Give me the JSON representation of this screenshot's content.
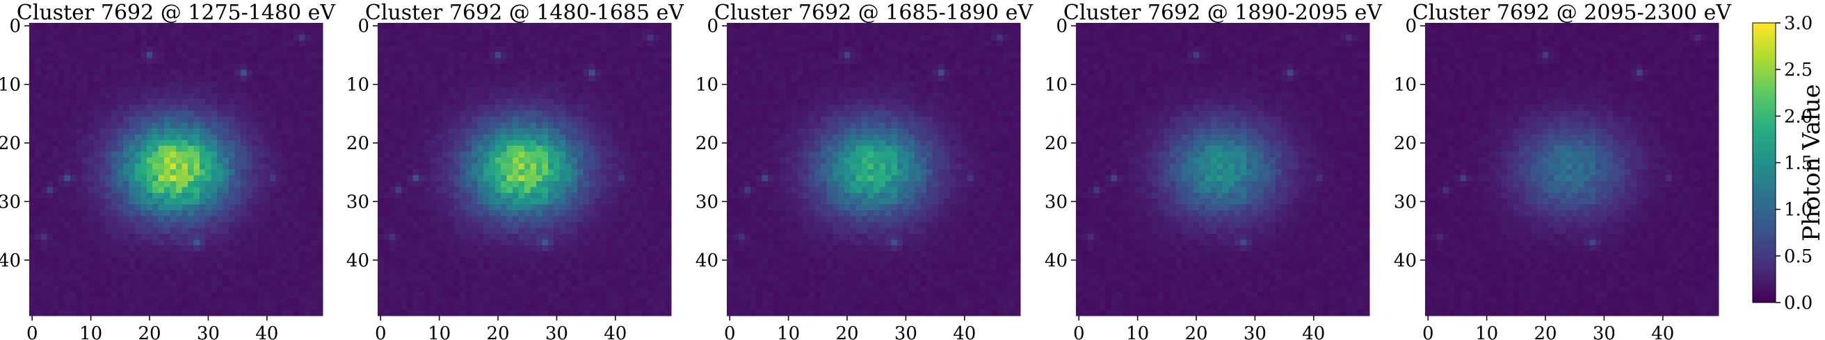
{
  "chart_data": {
    "type": "heatmap",
    "grid_size": 50,
    "cluster": "7692",
    "title_format": "Cluster {cluster} @ {band} eV",
    "xticks": [
      0,
      10,
      20,
      30,
      40
    ],
    "yticks": [
      0,
      10,
      20,
      30,
      40
    ],
    "colormap": "viridis",
    "colorbar": {
      "label": "Photon Value",
      "range": [
        0.0,
        3.0
      ],
      "ticks": [
        "0.0",
        "0.5",
        "1.0",
        "1.5",
        "2.0",
        "2.5",
        "3.0"
      ]
    },
    "source_blob": {
      "center_x": 24.5,
      "center_y": 24.5,
      "sigma_x": 6.5,
      "sigma_y": 5.5
    },
    "point_sources": [
      {
        "x": 20,
        "y": 5,
        "strength": 0.55
      },
      {
        "x": 36,
        "y": 8,
        "strength": 0.6
      },
      {
        "x": 6,
        "y": 26,
        "strength": 0.5
      },
      {
        "x": 3,
        "y": 28,
        "strength": 0.35
      },
      {
        "x": 28,
        "y": 37,
        "strength": 0.55
      },
      {
        "x": 2,
        "y": 36,
        "strength": 0.3
      },
      {
        "x": 46,
        "y": 2,
        "strength": 0.3
      },
      {
        "x": 41,
        "y": 26,
        "strength": 0.3
      }
    ],
    "panels": [
      {
        "band": "1275-1480",
        "title": "Cluster 7692 @ 1275-1480 eV",
        "peak": 2.35,
        "background": 0.12
      },
      {
        "band": "1480-1685",
        "title": "Cluster 7692 @ 1480-1685 eV",
        "peak": 2.2,
        "background": 0.12
      },
      {
        "band": "1685-1890",
        "title": "Cluster 7692 @ 1685-1890 eV",
        "peak": 1.7,
        "background": 0.11
      },
      {
        "band": "1890-2095",
        "title": "Cluster 7692 @ 1890-2095 eV",
        "peak": 1.3,
        "background": 0.1
      },
      {
        "band": "2095-2300",
        "title": "Cluster 7692 @ 2095-2300 eV",
        "peak": 0.95,
        "background": 0.09
      }
    ]
  }
}
